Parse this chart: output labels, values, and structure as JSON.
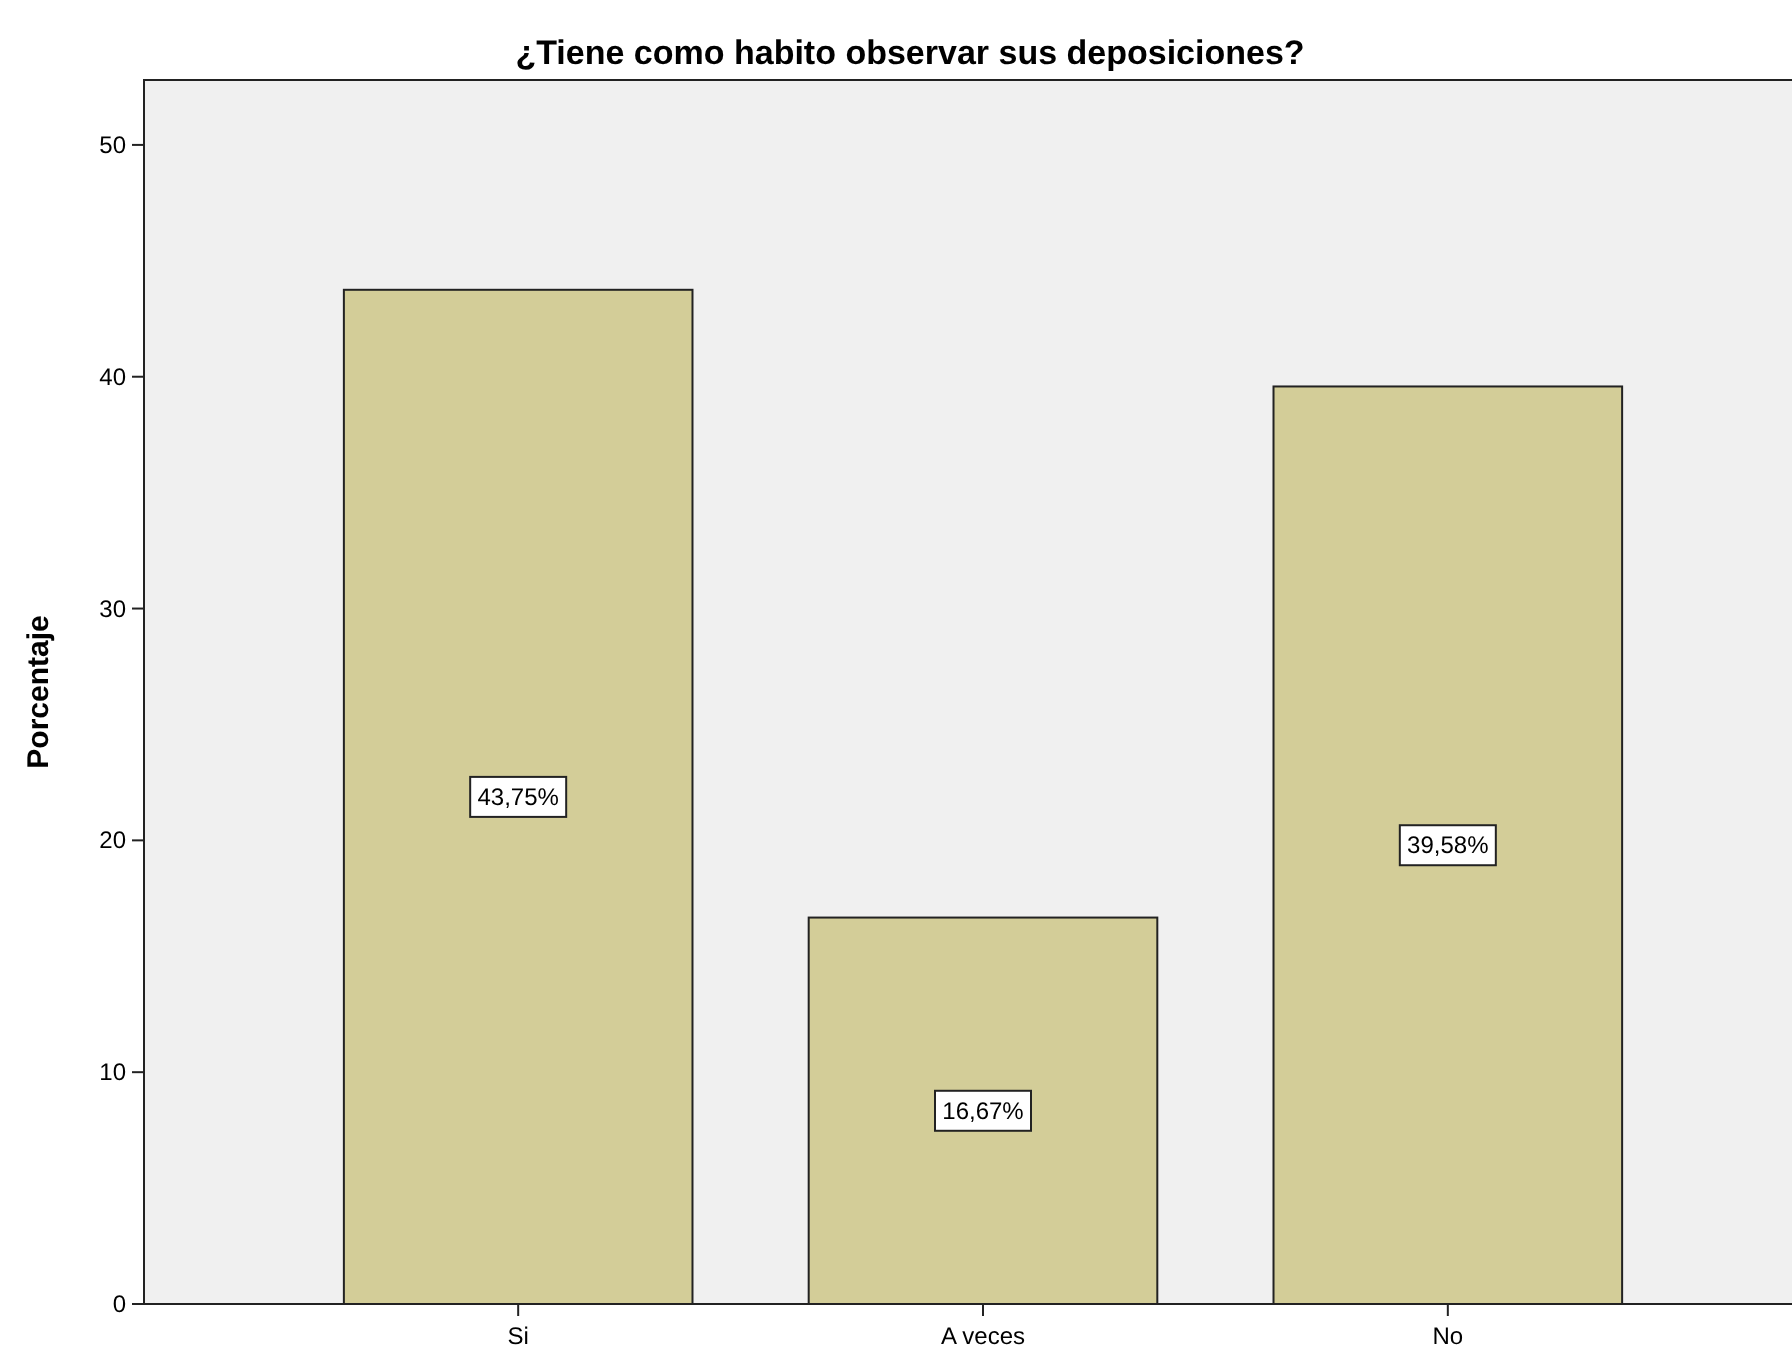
{
  "chart_data": {
    "type": "bar",
    "title": "¿Tiene como habito observar sus deposiciones?",
    "ylabel": "Porcentaje",
    "categories": [
      "Si",
      "A veces",
      "No"
    ],
    "values": [
      43.75,
      16.67,
      39.58
    ],
    "value_labels": [
      "43,75%",
      "16,67%",
      "39,58%"
    ],
    "color": "#d3cd98",
    "ylim": [
      0,
      52.8
    ],
    "yticks": [
      0,
      10,
      20,
      30,
      40,
      50
    ],
    "grid": false
  }
}
